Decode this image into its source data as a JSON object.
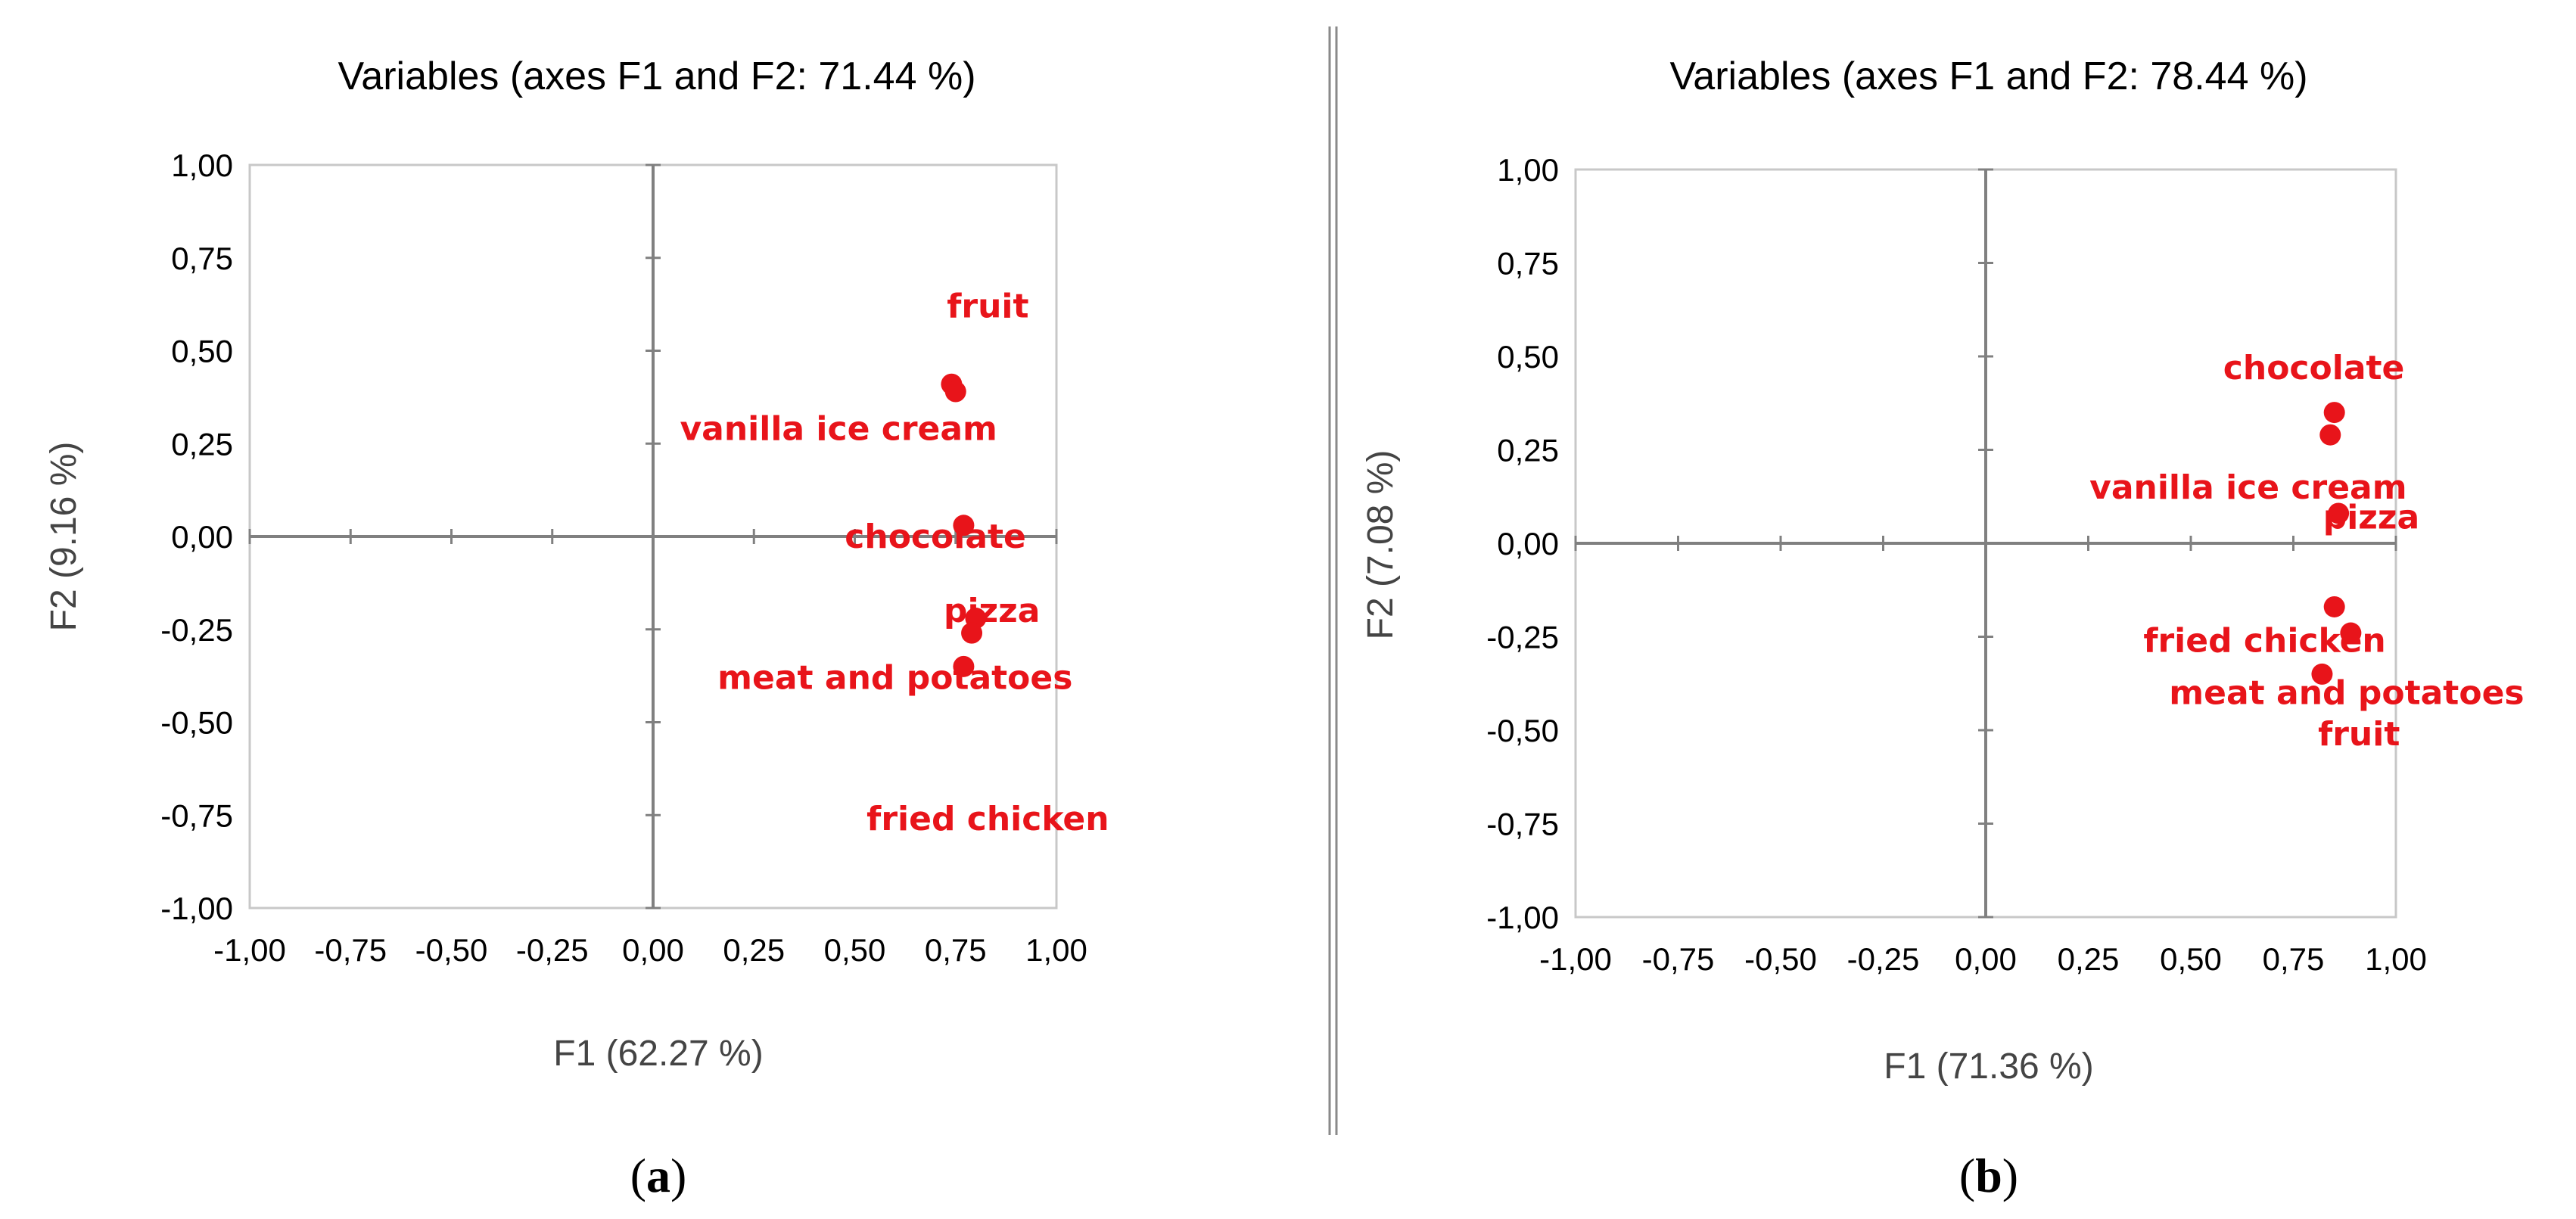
{
  "colors": {
    "point": "#e8141a",
    "axis": "#808080",
    "frame": "#c8c8c8",
    "divider": "#8a8a8a"
  },
  "chart_data": [
    {
      "type": "scatter",
      "panel_label": "a",
      "title": "Variables (axes F1 and F2: 71.44 %)",
      "xlabel": "F1 (62.27 %)",
      "ylabel": "F2 (9.16 %)",
      "xlim": [
        -1,
        1
      ],
      "ylim": [
        -1,
        1
      ],
      "x_ticks": [
        "-1,00",
        "-0,75",
        "-0,50",
        "-0,25",
        "0,00",
        "0,25",
        "0,50",
        "0,75",
        "1,00"
      ],
      "y_ticks": [
        "1,00",
        "0,75",
        "0,50",
        "0,25",
        "0,00",
        "-0,25",
        "-0,50",
        "-0,75",
        "-1,00"
      ],
      "grid": false,
      "points": [
        {
          "x": 0.74,
          "y": 0.41
        },
        {
          "x": 0.75,
          "y": 0.39
        },
        {
          "x": 0.77,
          "y": 0.03
        },
        {
          "x": 0.8,
          "y": -0.22
        },
        {
          "x": 0.79,
          "y": -0.26
        },
        {
          "x": 0.77,
          "y": -0.35
        }
      ],
      "labels": [
        {
          "text": "fruit",
          "x": 0.83,
          "y": 0.62
        },
        {
          "text": "vanilla ice cream",
          "x": 0.46,
          "y": 0.29
        },
        {
          "text": "chocolate",
          "x": 0.7,
          "y": 0.0
        },
        {
          "text": "pizza",
          "x": 0.84,
          "y": -0.2
        },
        {
          "text": "meat and potatoes",
          "x": 0.6,
          "y": -0.38
        },
        {
          "text": "fried chicken",
          "x": 0.83,
          "y": -0.76
        }
      ]
    },
    {
      "type": "scatter",
      "panel_label": "b",
      "title": "Variables (axes F1 and F2: 78.44 %)",
      "xlabel": "F1 (71.36 %)",
      "ylabel": "F2 (7.08 %)",
      "xlim": [
        -1,
        1
      ],
      "ylim": [
        -1,
        1
      ],
      "x_ticks": [
        "-1,00",
        "-0,75",
        "-0,50",
        "-0,25",
        "0,00",
        "0,25",
        "0,50",
        "0,75",
        "1,00"
      ],
      "y_ticks": [
        "1,00",
        "0,75",
        "0,50",
        "0,25",
        "0,00",
        "-0,25",
        "-0,50",
        "-0,75",
        "-1,00"
      ],
      "grid": false,
      "points": [
        {
          "x": 0.85,
          "y": 0.35
        },
        {
          "x": 0.84,
          "y": 0.29
        },
        {
          "x": 0.86,
          "y": 0.08
        },
        {
          "x": 0.85,
          "y": -0.17
        },
        {
          "x": 0.89,
          "y": -0.24
        },
        {
          "x": 0.82,
          "y": -0.35
        }
      ],
      "labels": [
        {
          "text": "chocolate",
          "x": 0.8,
          "y": 0.47
        },
        {
          "text": "vanilla ice cream",
          "x": 0.64,
          "y": 0.15
        },
        {
          "text": "pizza",
          "x": 0.94,
          "y": 0.07
        },
        {
          "text": "fried chicken",
          "x": 0.68,
          "y": -0.26
        },
        {
          "text": "meat and potatoes",
          "x": 0.88,
          "y": -0.4
        },
        {
          "text": "fruit",
          "x": 0.91,
          "y": -0.51
        }
      ]
    }
  ]
}
